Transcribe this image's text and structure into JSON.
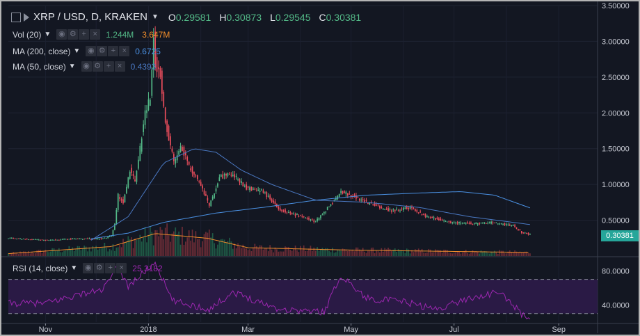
{
  "header": {
    "symbol": "XRP / USD, D, KRAKEN",
    "o_label": "O",
    "o_value": "0.29581",
    "h_label": "H",
    "h_value": "0.30873",
    "l_label": "L",
    "l_value": "0.29545",
    "c_label": "C",
    "c_value": "0.30381"
  },
  "indicators": {
    "vol": {
      "name": "Vol (20)",
      "value1": "1.244M",
      "value2": "3.647M"
    },
    "ma200": {
      "name": "MA (200, close)",
      "value": "0.6725"
    },
    "ma50": {
      "name": "MA (50, close)",
      "value": "0.4393"
    },
    "rsi": {
      "name": "RSI (14, close)",
      "value": "25.3182"
    }
  },
  "price_label": "0.30381",
  "colors": {
    "background": "#131722",
    "up": "#53b987",
    "down": "#eb4d5c",
    "ma200": "#4a90e2",
    "ma50": "#4a78c2",
    "vol_ma": "#f28e2b",
    "rsi": "#9c27b0"
  },
  "icons": [
    "eye-icon",
    "gear-icon",
    "plus-icon",
    "close-icon"
  ],
  "chart_data": [
    {
      "type": "candlestick",
      "yticks": [
        "3.50000",
        "3.00000",
        "2.50000",
        "2.00000",
        "1.50000",
        "1.00000",
        "0.50000"
      ],
      "ytick_values": [
        3.5,
        3.0,
        2.5,
        2.0,
        1.5,
        1.0,
        0.5
      ],
      "ylim": [
        0.0,
        3.5
      ],
      "xticks": [
        "Nov",
        "2018",
        "Mar",
        "May",
        "Jul",
        "Sep"
      ],
      "xlim": [
        "2017-10-10",
        "2018-09-24"
      ],
      "anchors": [
        {
          "date": "2017-10-10",
          "close": 0.25
        },
        {
          "date": "2017-11-01",
          "close": 0.22
        },
        {
          "date": "2017-11-20",
          "close": 0.24
        },
        {
          "date": "2017-12-05",
          "close": 0.24
        },
        {
          "date": "2017-12-10",
          "close": 0.28
        },
        {
          "date": "2017-12-12",
          "close": 0.45
        },
        {
          "date": "2017-12-14",
          "close": 0.85
        },
        {
          "date": "2017-12-17",
          "close": 0.74
        },
        {
          "date": "2017-12-21",
          "close": 1.2
        },
        {
          "date": "2017-12-24",
          "close": 1.05
        },
        {
          "date": "2017-12-27",
          "close": 1.5
        },
        {
          "date": "2017-12-30",
          "close": 2.05
        },
        {
          "date": "2018-01-02",
          "close": 2.2
        },
        {
          "date": "2018-01-04",
          "close": 3.1
        },
        {
          "date": "2018-01-05",
          "close": 2.7
        },
        {
          "date": "2018-01-08",
          "close": 2.55
        },
        {
          "date": "2018-01-11",
          "close": 1.9
        },
        {
          "date": "2018-01-16",
          "close": 1.3
        },
        {
          "date": "2018-01-20",
          "close": 1.55
        },
        {
          "date": "2018-01-25",
          "close": 1.25
        },
        {
          "date": "2018-02-01",
          "close": 1.0
        },
        {
          "date": "2018-02-06",
          "close": 0.7
        },
        {
          "date": "2018-02-12",
          "close": 1.1
        },
        {
          "date": "2018-02-20",
          "close": 1.15
        },
        {
          "date": "2018-02-28",
          "close": 0.95
        },
        {
          "date": "2018-03-10",
          "close": 0.9
        },
        {
          "date": "2018-03-20",
          "close": 0.65
        },
        {
          "date": "2018-04-01",
          "close": 0.55
        },
        {
          "date": "2018-04-10",
          "close": 0.48
        },
        {
          "date": "2018-04-20",
          "close": 0.75
        },
        {
          "date": "2018-04-25",
          "close": 0.9
        },
        {
          "date": "2018-05-01",
          "close": 0.85
        },
        {
          "date": "2018-05-10",
          "close": 0.75
        },
        {
          "date": "2018-05-25",
          "close": 0.63
        },
        {
          "date": "2018-06-05",
          "close": 0.68
        },
        {
          "date": "2018-06-15",
          "close": 0.55
        },
        {
          "date": "2018-06-30",
          "close": 0.47
        },
        {
          "date": "2018-07-15",
          "close": 0.45
        },
        {
          "date": "2018-07-25",
          "close": 0.47
        },
        {
          "date": "2018-08-05",
          "close": 0.42
        },
        {
          "date": "2018-08-10",
          "close": 0.33
        },
        {
          "date": "2018-08-15",
          "close": 0.30381
        }
      ],
      "series": [
        {
          "name": "MA (200, close)",
          "anchors": [
            [
              "2017-11-28",
              0.24
            ],
            [
              "2017-12-20",
              0.32
            ],
            [
              "2018-01-10",
              0.47
            ],
            [
              "2018-02-10",
              0.6
            ],
            [
              "2018-03-10",
              0.68
            ],
            [
              "2018-04-10",
              0.78
            ],
            [
              "2018-05-10",
              0.85
            ],
            [
              "2018-06-10",
              0.88
            ],
            [
              "2018-07-05",
              0.9
            ],
            [
              "2018-07-25",
              0.85
            ],
            [
              "2018-08-15",
              0.6725
            ]
          ]
        },
        {
          "name": "MA (50, close)",
          "anchors": [
            [
              "2017-11-28",
              0.22
            ],
            [
              "2017-12-20",
              0.55
            ],
            [
              "2018-01-10",
              1.3
            ],
            [
              "2018-01-28",
              1.5
            ],
            [
              "2018-02-10",
              1.45
            ],
            [
              "2018-02-25",
              1.2
            ],
            [
              "2018-03-15",
              1.0
            ],
            [
              "2018-04-10",
              0.78
            ],
            [
              "2018-05-10",
              0.75
            ],
            [
              "2018-06-10",
              0.68
            ],
            [
              "2018-07-10",
              0.55
            ],
            [
              "2018-08-15",
              0.4393
            ]
          ]
        }
      ]
    },
    {
      "type": "bar",
      "name": "Vol (20)",
      "value_labels": [
        "1.244M",
        "3.647M"
      ],
      "anchors": [
        [
          "2017-10-10",
          0.1
        ],
        [
          "2017-12-10",
          0.4
        ],
        [
          "2018-01-05",
          0.95
        ],
        [
          "2018-02-05",
          0.75
        ],
        [
          "2018-03-01",
          0.35
        ],
        [
          "2018-05-01",
          0.25
        ],
        [
          "2018-08-15",
          0.15
        ]
      ]
    },
    {
      "type": "line",
      "name": "RSI (14, close)",
      "yticks": [
        "80.0000",
        "40.0000"
      ],
      "ytick_values": [
        80,
        40
      ],
      "ylim": [
        20,
        95
      ],
      "band": [
        30,
        70
      ],
      "anchors": [
        [
          "2017-10-10",
          42
        ],
        [
          "2017-11-01",
          42
        ],
        [
          "2017-11-20",
          52
        ],
        [
          "2017-12-05",
          58
        ],
        [
          "2017-12-14",
          85
        ],
        [
          "2017-12-20",
          62
        ],
        [
          "2018-01-05",
          90
        ],
        [
          "2018-01-15",
          45
        ],
        [
          "2018-02-06",
          35
        ],
        [
          "2018-02-20",
          55
        ],
        [
          "2018-03-20",
          35
        ],
        [
          "2018-04-15",
          32
        ],
        [
          "2018-04-25",
          75
        ],
        [
          "2018-05-10",
          48
        ],
        [
          "2018-06-01",
          44
        ],
        [
          "2018-06-20",
          35
        ],
        [
          "2018-07-10",
          48
        ],
        [
          "2018-07-28",
          55
        ],
        [
          "2018-08-05",
          40
        ],
        [
          "2018-08-12",
          25
        ],
        [
          "2018-08-15",
          25.3182
        ]
      ]
    }
  ]
}
